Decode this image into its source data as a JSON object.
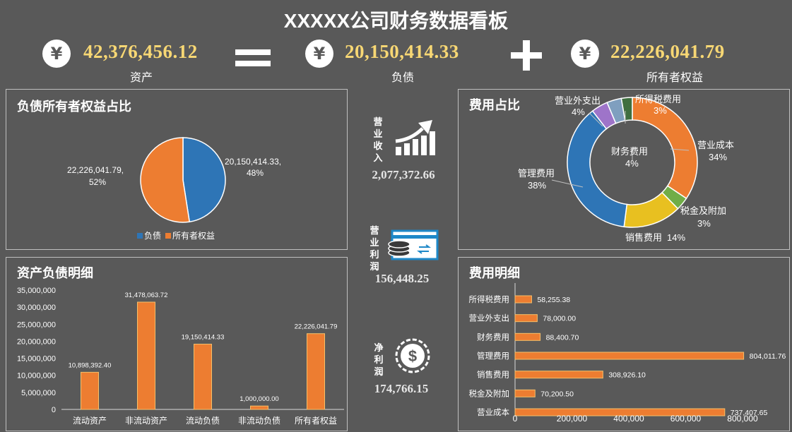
{
  "title": "XXXXX公司财务数据看板",
  "summary": {
    "currency_icon": "¥",
    "assets": {
      "value": "42,376,456.12",
      "label": "资产"
    },
    "equals": "=",
    "liabilities": {
      "value": "20,150,414.33",
      "label": "负债"
    },
    "plus": "+",
    "equity": {
      "value": "22,226,041.79",
      "label": "所有者权益"
    }
  },
  "metrics": {
    "revenue": {
      "label": "营业收入",
      "value": "2,077,372.66"
    },
    "profit": {
      "label": "营业利润",
      "value": "156,448.25"
    },
    "net_profit": {
      "label": "净利润",
      "value": "174,766.15"
    }
  },
  "colors": {
    "blue": "#2e75b6",
    "orange": "#ed7d31",
    "bg": "#595959",
    "gold": "#f7d774"
  },
  "chart_data": [
    {
      "panel_title": "负债所有者权益占比",
      "type": "pie",
      "series": [
        {
          "name": "负债",
          "value": 20150414.33,
          "label": "20,150,414.33,",
          "pct": "48%",
          "color": "#2e75b6"
        },
        {
          "name": "所有者权益",
          "value": 22226041.79,
          "label": "22,226,041.79,",
          "pct": "52%",
          "color": "#ed7d31"
        }
      ],
      "legend": "bottom"
    },
    {
      "panel_title": "费用占比",
      "type": "pie",
      "donut": true,
      "series": [
        {
          "name": "营业成本",
          "value": 737407.65,
          "pct": "34%",
          "color": "#ed7d31"
        },
        {
          "name": "税金及附加",
          "value": 70200.5,
          "pct": "3%",
          "color": "#70ad47"
        },
        {
          "name": "销售费用",
          "value": 308926.1,
          "pct": "14%",
          "color": "#e8c020"
        },
        {
          "name": "管理费用",
          "value": 804011.76,
          "pct": "38%",
          "color": "#2e75b6"
        },
        {
          "name": "财务费用",
          "value": 88400.7,
          "pct": "4%",
          "color": "#9e74c9"
        },
        {
          "name": "营业外支出",
          "value": 78000.0,
          "pct": "4%",
          "color": "#7f9fbf"
        },
        {
          "name": "所得税费用",
          "value": 58255.38,
          "pct": "3%",
          "color": "#3f6f3f"
        }
      ]
    },
    {
      "panel_title": "资产负债明细",
      "type": "bar",
      "categories": [
        "流动资产",
        "非流动资产",
        "流动负债",
        "非流动负债",
        "所有者权益"
      ],
      "values": [
        10898392.4,
        31478063.72,
        19150414.33,
        1000000.0,
        22226041.79
      ],
      "value_labels": [
        "10,898,392.40",
        "31,478,063.72",
        "19,150,414.33",
        "1,000,000.00",
        "22,226,041.79"
      ],
      "ylim": [
        0,
        35000000
      ],
      "yticks": [
        "0",
        "5,000,000",
        "10,000,000",
        "15,000,000",
        "20,000,000",
        "25,000,000",
        "30,000,000",
        "35,000,000"
      ],
      "color": "#ed7d31"
    },
    {
      "panel_title": "费用明细",
      "type": "bar",
      "orientation": "horizontal",
      "categories": [
        "所得税费用",
        "营业外支出",
        "财务费用",
        "管理费用",
        "销售费用",
        "税金及附加",
        "营业成本"
      ],
      "values": [
        58255.38,
        78000.0,
        88400.7,
        804011.76,
        308926.1,
        70200.5,
        737407.65
      ],
      "value_labels": [
        "58,255.38",
        "78,000.00",
        "88,400.70",
        "804,011.76",
        "308,926.10",
        "70,200.50",
        "737,407.65"
      ],
      "xlim": [
        0,
        800000
      ],
      "xticks": [
        "0",
        "200,000",
        "400,000",
        "600,000",
        "800,000"
      ],
      "color": "#ed7d31"
    }
  ]
}
